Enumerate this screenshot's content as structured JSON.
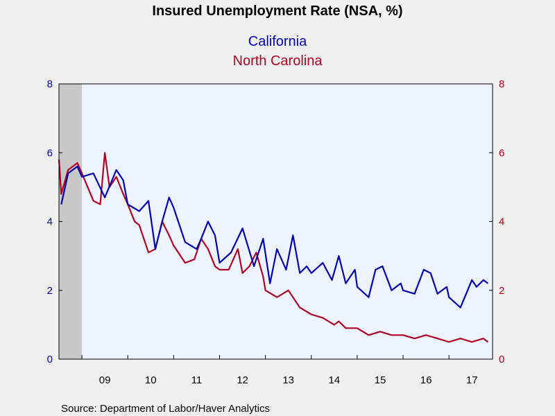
{
  "chart_data": {
    "type": "line",
    "title": "Insured Unemployment Rate (NSA, %)",
    "series": [
      {
        "name": "California",
        "color": "#0000b0",
        "axis": "left",
        "x": [
          2008.55,
          2008.7,
          2008.9,
          2009.0,
          2009.25,
          2009.5,
          2009.75,
          2009.9,
          2010.0,
          2010.25,
          2010.45,
          2010.6,
          2010.75,
          2010.9,
          2011.0,
          2011.25,
          2011.5,
          2011.6,
          2011.75,
          2011.9,
          2012.0,
          2012.25,
          2012.5,
          2012.75,
          2012.95,
          2013.1,
          2013.25,
          2013.45,
          2013.6,
          2013.75,
          2013.9,
          2014.0,
          2014.25,
          2014.45,
          2014.6,
          2014.75,
          2014.95,
          2015.0,
          2015.25,
          2015.4,
          2015.55,
          2015.75,
          2015.95,
          2016.0,
          2016.25,
          2016.45,
          2016.6,
          2016.75,
          2016.95,
          2017.0,
          2017.25,
          2017.5,
          2017.6,
          2017.75,
          2017.85
        ],
        "values": [
          4.5,
          5.4,
          5.6,
          5.3,
          5.4,
          4.7,
          5.5,
          5.2,
          4.5,
          4.3,
          4.6,
          3.2,
          4.0,
          4.7,
          4.4,
          3.4,
          3.2,
          3.5,
          4.0,
          3.6,
          2.8,
          3.1,
          3.8,
          2.7,
          3.5,
          2.2,
          3.2,
          2.6,
          3.6,
          2.5,
          2.7,
          2.5,
          2.8,
          2.3,
          3.0,
          2.2,
          2.6,
          2.1,
          1.8,
          2.6,
          2.7,
          2.0,
          2.2,
          2.0,
          1.9,
          2.6,
          2.5,
          1.9,
          2.1,
          1.8,
          1.5,
          2.3,
          2.1,
          2.3,
          2.2
        ]
      },
      {
        "name": "North Carolina",
        "color": "#b00020",
        "axis": "right",
        "x": [
          2008.5,
          2008.55,
          2008.7,
          2008.9,
          2009.0,
          2009.25,
          2009.4,
          2009.5,
          2009.6,
          2009.75,
          2009.9,
          2010.0,
          2010.15,
          2010.25,
          2010.45,
          2010.6,
          2010.75,
          2010.9,
          2011.0,
          2011.25,
          2011.45,
          2011.6,
          2011.75,
          2011.9,
          2012.0,
          2012.2,
          2012.4,
          2012.5,
          2012.65,
          2012.8,
          2012.95,
          2013.0,
          2013.25,
          2013.5,
          2013.75,
          2014.0,
          2014.25,
          2014.5,
          2014.6,
          2014.75,
          2015.0,
          2015.25,
          2015.5,
          2015.75,
          2016.0,
          2016.25,
          2016.5,
          2016.75,
          2017.0,
          2017.25,
          2017.5,
          2017.75,
          2017.85
        ],
        "values": [
          5.8,
          4.8,
          5.5,
          5.7,
          5.4,
          4.6,
          4.5,
          6.0,
          5.0,
          5.3,
          4.8,
          4.5,
          4.0,
          3.9,
          3.1,
          3.2,
          4.0,
          3.6,
          3.3,
          2.8,
          2.9,
          3.5,
          3.2,
          2.7,
          2.6,
          2.6,
          3.2,
          2.5,
          2.7,
          3.1,
          2.4,
          2.0,
          1.8,
          2.0,
          1.5,
          1.3,
          1.2,
          1.0,
          1.1,
          0.9,
          0.9,
          0.7,
          0.8,
          0.7,
          0.7,
          0.6,
          0.7,
          0.6,
          0.5,
          0.6,
          0.5,
          0.6,
          0.5
        ]
      }
    ],
    "ylim_left": [
      0,
      8
    ],
    "ylim_right": [
      0,
      8
    ],
    "yticks": [
      "0",
      "2",
      "4",
      "6",
      "8"
    ],
    "ytick_values": [
      0,
      2,
      4,
      6,
      8
    ],
    "x_range": [
      2008.5,
      2017.95
    ],
    "xticks": [
      {
        "label": "09",
        "year": 2009
      },
      {
        "label": "10",
        "year": 2010
      },
      {
        "label": "11",
        "year": 2011
      },
      {
        "label": "12",
        "year": 2012
      },
      {
        "label": "13",
        "year": 2013
      },
      {
        "label": "14",
        "year": 2014
      },
      {
        "label": "15",
        "year": 2015
      },
      {
        "label": "16",
        "year": 2016
      },
      {
        "label": "17",
        "year": 2017
      }
    ],
    "recession_shading": [
      [
        2008.5,
        2009.0
      ]
    ],
    "left_axis_color": "#0000b0",
    "right_axis_color": "#b00020",
    "plot_background": "#eef4ff",
    "recession_color": "#c8c8c8",
    "grid": false,
    "source": "Source:  Department of Labor/Haver Analytics"
  }
}
